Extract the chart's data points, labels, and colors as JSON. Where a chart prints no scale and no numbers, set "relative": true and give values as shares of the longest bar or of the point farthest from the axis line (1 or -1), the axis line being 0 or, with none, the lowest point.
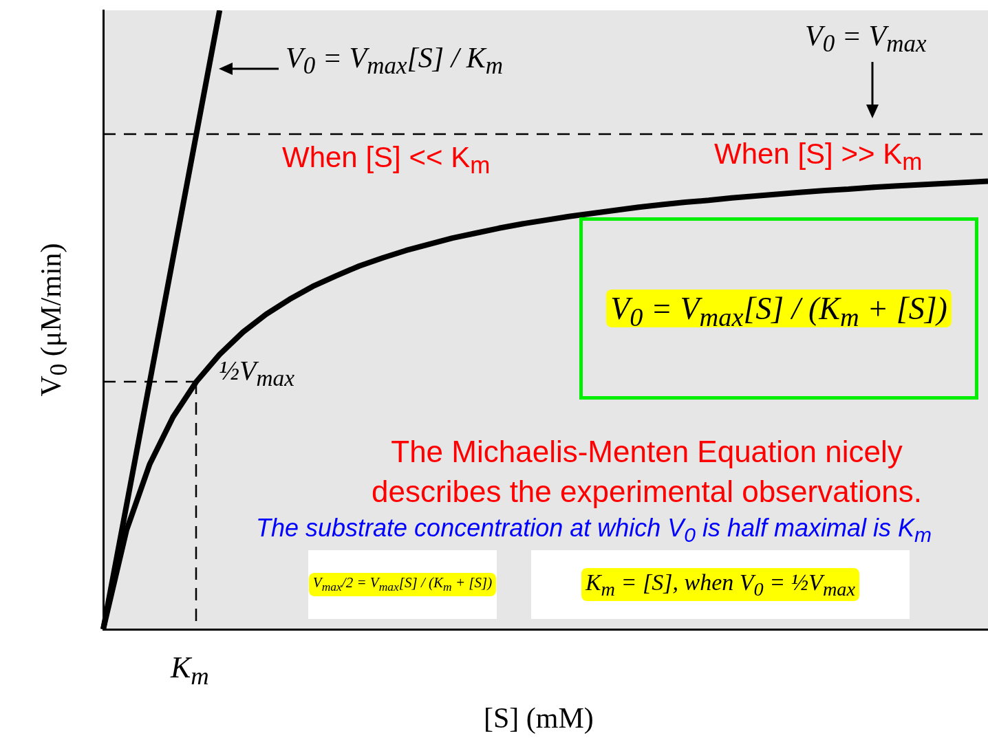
{
  "chart_data": {
    "type": "line",
    "relative": true,
    "xlabel": "[S] (mM)",
    "ylabel": "V$_{0}$ (μM/min)",
    "grid": false,
    "marker": "none",
    "categories": [
      null,
      null,
      null,
      null,
      null,
      null,
      null,
      null,
      null,
      null,
      null,
      null,
      null,
      null,
      null,
      null,
      null,
      null,
      null,
      null,
      null,
      null,
      null,
      null,
      null,
      null,
      null,
      null,
      null,
      null,
      null,
      null,
      null,
      null,
      null,
      null,
      null,
      null,
      null
    ],
    "series": [
      {
        "color": "#000000",
        "line_style": "solid",
        "values": [
          0,
          0.16,
          0.267,
          0.343,
          0.4,
          0.444,
          0.48,
          0.509,
          0.533,
          0.554,
          0.571,
          0.587,
          0.6,
          0.612,
          0.622,
          0.632,
          0.64,
          0.648,
          0.655,
          0.661,
          0.667,
          0.672,
          0.677,
          0.682,
          0.686,
          0.69,
          0.693,
          0.697,
          0.7,
          0.703,
          0.706,
          0.709,
          0.711,
          0.714,
          0.716,
          0.718,
          0.72,
          0.722,
          0.724
        ]
      },
      {
        "color": "#000000",
        "line_style": "solid",
        "values": [
          0,
          0.2,
          0.4,
          0.6,
          0.8,
          1,
          null,
          null,
          null,
          null,
          null,
          null,
          null,
          null,
          null,
          null,
          null,
          null,
          null,
          null,
          null,
          null,
          null,
          null,
          null,
          null,
          null,
          null,
          null,
          null,
          null,
          null,
          null,
          null,
          null,
          null,
          null,
          null,
          null
        ]
      },
      {
        "color": "#000000",
        "line_style": "dashed",
        "values": [
          0.4,
          0.4,
          0.4,
          0.4,
          0.4,
          null,
          null,
          null,
          null,
          null,
          null,
          null,
          null,
          null,
          null,
          null,
          null,
          null,
          null,
          null,
          null,
          null,
          null,
          null,
          null,
          null,
          null,
          null,
          null,
          null,
          null,
          null,
          null,
          null,
          null,
          null,
          null,
          null,
          null
        ]
      }
    ],
    "ref_lines": [
      {
        "axis": "y",
        "value": 0.8,
        "color": "#000000",
        "line_style": "dashed"
      }
    ],
    "annotations": [
      "V$_{0}$ = V$_{max}$[S] / K$_{m}$",
      "When [S] << K$_{m}$",
      "V$_{0}$ = V$_{max}$",
      "When [S] >> K$_{m}$",
      "½V$_{max}$",
      "V$_{0}$ = V$_{max}$[S] / (K$_{m}$ + [S])",
      "The Michaelis-Menten Equation nicely describes the experimental observations.",
      "The substrate concentration at which V$_{0}$ is half maximal is K$_{m}$",
      "V$_{max}$/2 = V$_{max}$[S] / (K$_{m}$ + [S])",
      "K$_{m}$ = [S], when V$_{0}$ = ½V$_{max}$",
      "K$_{m}$"
    ]
  }
}
